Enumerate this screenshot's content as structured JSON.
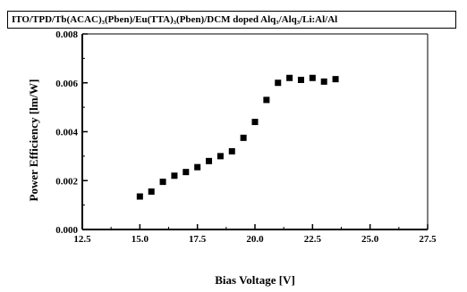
{
  "chart_data": {
    "type": "scatter",
    "title": "ITO/TPD/Tb(ACAC)₃(Pben)/Eu(TTA)₃(Pben)/DCM doped Alq₃/Alq₃/Li:Al/Al",
    "xlabel": "Bias Voltage [V]",
    "ylabel": "Power Efficiency [lm/W]",
    "xlim": [
      12.5,
      27.5
    ],
    "ylim": [
      0.0,
      0.008
    ],
    "xticks": [
      "12.5",
      "15.0",
      "17.5",
      "20.0",
      "22.5",
      "25.0",
      "27.5"
    ],
    "yticks": [
      "0.000",
      "0.002",
      "0.004",
      "0.006",
      "0.008"
    ],
    "grid": false,
    "series": [
      {
        "marker": "square",
        "color": "#000000",
        "x": [
          15.0,
          15.5,
          16.0,
          16.5,
          17.0,
          17.5,
          18.0,
          18.5,
          19.0,
          19.5,
          20.0,
          20.5,
          21.0,
          21.5,
          22.0,
          22.5,
          23.0,
          23.5
        ],
        "y": [
          0.00135,
          0.00155,
          0.00195,
          0.0022,
          0.00235,
          0.00255,
          0.0028,
          0.003,
          0.0032,
          0.00375,
          0.0044,
          0.0053,
          0.006,
          0.0062,
          0.00612,
          0.0062,
          0.00605,
          0.00615
        ]
      }
    ]
  }
}
